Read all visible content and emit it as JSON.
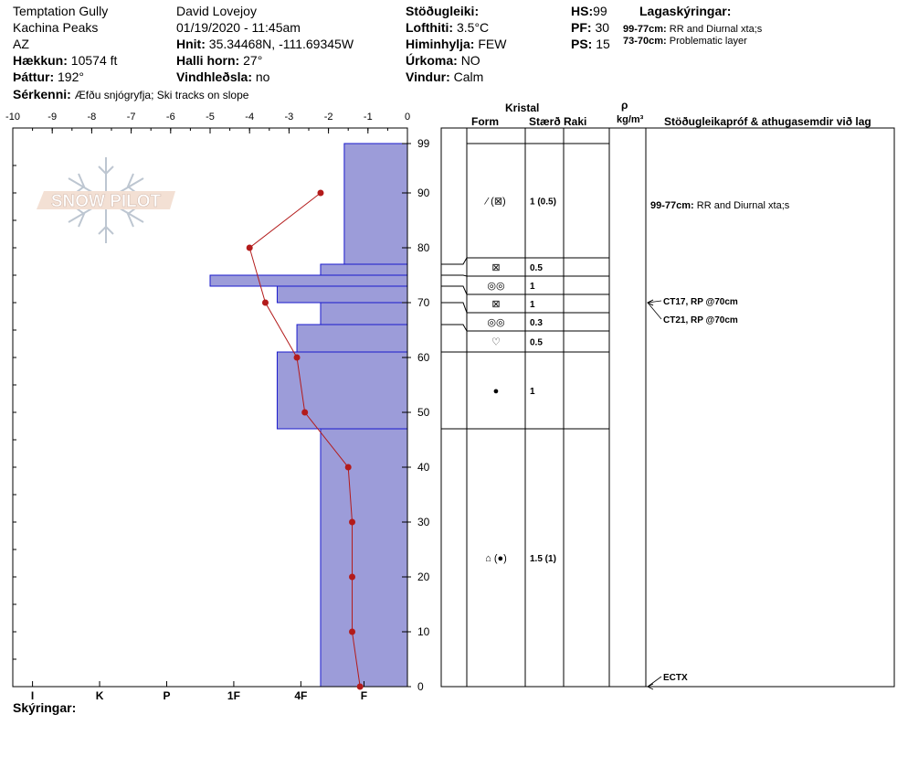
{
  "header": {
    "location": "Temptation Gully",
    "area": "Kachina Peaks",
    "state": "AZ",
    "observer": "David Lovejoy",
    "datetime": "01/19/2020 - 11:45am",
    "elevation_label": "Hækkun:",
    "elevation": "10574 ft",
    "aspect_label": "Þáttur:",
    "aspect": "192°",
    "coords_label": "Hnit:",
    "coords": "35.34468N, -111.69345W",
    "slope_label": "Halli horn:",
    "slope": "27°",
    "wind_loading_label": "Vindhleðsla:",
    "wind_loading": "no",
    "stability_label": "Stöðugleiki:",
    "stability": "",
    "air_temp_label": "Lofthiti:",
    "air_temp": "3.5°C",
    "sky_label": "Himinhylja:",
    "sky": "FEW",
    "precip_label": "Úrkoma:",
    "precip": "NO",
    "wind_label": "Vindur:",
    "wind": "Calm",
    "hs_label": "HS:",
    "hs": "99",
    "pf_label": "PF:",
    "pf": "30",
    "ps_label": "PS:",
    "ps": "15",
    "layers_title": "Lagaskýringar:",
    "layer_notes": [
      {
        "range": "99-77cm:",
        "text": "RR and Diurnal xta;s"
      },
      {
        "range": "73-70cm:",
        "text": "Problematic layer"
      }
    ],
    "notes_label": "Sérkenni:",
    "notes": "Æfðu snjógryfja;  Ski tracks on slope",
    "legend_label": "Skýringar:"
  },
  "logo": {
    "text": "SNOW PILOT"
  },
  "table_headers": {
    "crystal": "Kristal",
    "form": "Form",
    "size": "Stærð",
    "moisture": "Raki",
    "rho": "ρ",
    "density_unit": "kg/m³",
    "tests": "Stöðugleikapróf & athugasemdir við lag"
  },
  "colors": {
    "hardness_fill": "#9c9cd9",
    "hardness_edge": "#1a1acc",
    "temperature": "#b31b1b",
    "outline": "#000000"
  },
  "chart_data": {
    "type": "snow-profile",
    "temperature_axis": {
      "range": [
        -10,
        0
      ],
      "ticks": [
        "-10",
        "-9",
        "-8",
        "-7",
        "-6",
        "-5",
        "-4",
        "-3",
        "-2",
        "-1",
        "0"
      ]
    },
    "height_axis": {
      "range": [
        0,
        99
      ],
      "ticks": [
        "0",
        "10",
        "20",
        "30",
        "40",
        "50",
        "60",
        "70",
        "80",
        "90",
        "99"
      ]
    },
    "hardness_axis": {
      "labels": [
        {
          "label": "I",
          "temp": -9.5
        },
        {
          "label": "K",
          "temp": -7.8
        },
        {
          "label": "P",
          "temp": -6.1
        },
        {
          "label": "1F",
          "temp": -4.4
        },
        {
          "label": "4F",
          "temp": -2.7
        },
        {
          "label": "F",
          "temp": -1.1
        }
      ]
    },
    "hardness_layers": [
      {
        "top": 99,
        "bottom": 77,
        "extent": -1.6
      },
      {
        "top": 77,
        "bottom": 75,
        "extent": -2.2
      },
      {
        "top": 75,
        "bottom": 73,
        "extent": -5.0
      },
      {
        "top": 73,
        "bottom": 70,
        "extent": -3.3
      },
      {
        "top": 70,
        "bottom": 66,
        "extent": -2.2
      },
      {
        "top": 66,
        "bottom": 61,
        "extent": -2.8
      },
      {
        "top": 61,
        "bottom": 47,
        "extent": -3.3
      },
      {
        "top": 47,
        "bottom": 0,
        "extent": -2.2
      }
    ],
    "temperature_profile": [
      {
        "height": 90,
        "temp": -2.2
      },
      {
        "height": 80,
        "temp": -4.0
      },
      {
        "height": 70,
        "temp": -3.6
      },
      {
        "height": 60,
        "temp": -2.8
      },
      {
        "height": 50,
        "temp": -2.6
      },
      {
        "height": 40,
        "temp": -1.5
      },
      {
        "height": 30,
        "temp": -1.4
      },
      {
        "height": 20,
        "temp": -1.4
      },
      {
        "height": 10,
        "temp": -1.4
      },
      {
        "height": 0,
        "temp": -1.2
      }
    ],
    "layer_table": [
      {
        "top": 99,
        "bottom": 77,
        "form": "⁄ (⊠)",
        "size": "1 (0.5)"
      },
      {
        "top": 77,
        "bottom": 75,
        "form": "⊠",
        "size": "0.5"
      },
      {
        "top": 75,
        "bottom": 73,
        "form": "◎◎",
        "size": "1"
      },
      {
        "top": 73,
        "bottom": 70,
        "form": "⊠",
        "size": "1"
      },
      {
        "top": 70,
        "bottom": 66,
        "form": "◎◎",
        "size": "0.3"
      },
      {
        "top": 66,
        "bottom": 61,
        "form": "♡",
        "size": "0.5"
      },
      {
        "top": 61,
        "bottom": 47,
        "form": "●",
        "size": "1"
      },
      {
        "top": 47,
        "bottom": 0,
        "form": "⌂ (●)",
        "size": "1.5 (1)"
      }
    ],
    "comments": [
      {
        "height": 70,
        "text": "99-77cm: RR and Diurnal xta;s"
      }
    ],
    "stability_tests": [
      {
        "height": 70,
        "text": "CT17, RP @70cm"
      },
      {
        "height": 70,
        "text": "CT21, RP @70cm"
      },
      {
        "height": 0,
        "text": "ECTX"
      }
    ]
  }
}
